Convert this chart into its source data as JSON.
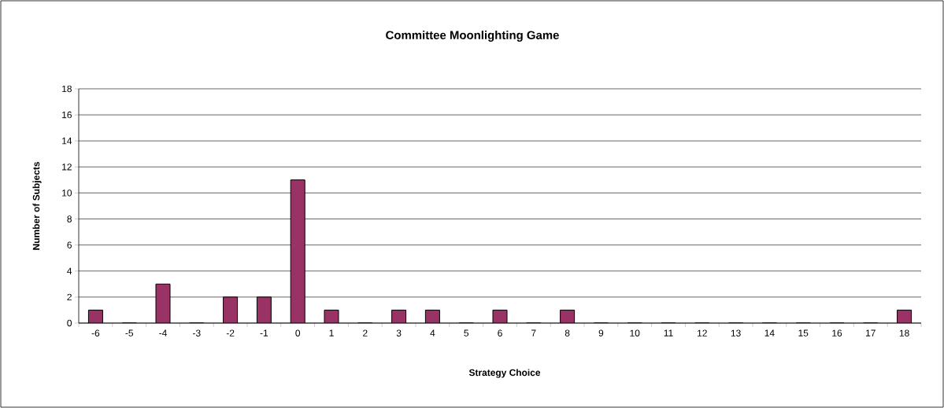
{
  "chart_data": {
    "type": "bar",
    "title": "Committee Moonlighting Game",
    "xlabel": "Strategy Choice",
    "ylabel": "Number of Subjects",
    "categories": [
      "-6",
      "-5",
      "-4",
      "-3",
      "-2",
      "-1",
      "0",
      "1",
      "2",
      "3",
      "4",
      "5",
      "6",
      "7",
      "8",
      "9",
      "10",
      "11",
      "12",
      "13",
      "14",
      "15",
      "16",
      "17",
      "18"
    ],
    "values": [
      1,
      0,
      3,
      0,
      2,
      2,
      11,
      1,
      0,
      1,
      1,
      0,
      1,
      0,
      1,
      0,
      0,
      0,
      0,
      0,
      0,
      0,
      0,
      0,
      1
    ],
    "color": "#993366",
    "ylim": [
      0,
      18
    ],
    "yticks": [
      0,
      2,
      4,
      6,
      8,
      10,
      12,
      14,
      16,
      18
    ],
    "grid": "y"
  }
}
